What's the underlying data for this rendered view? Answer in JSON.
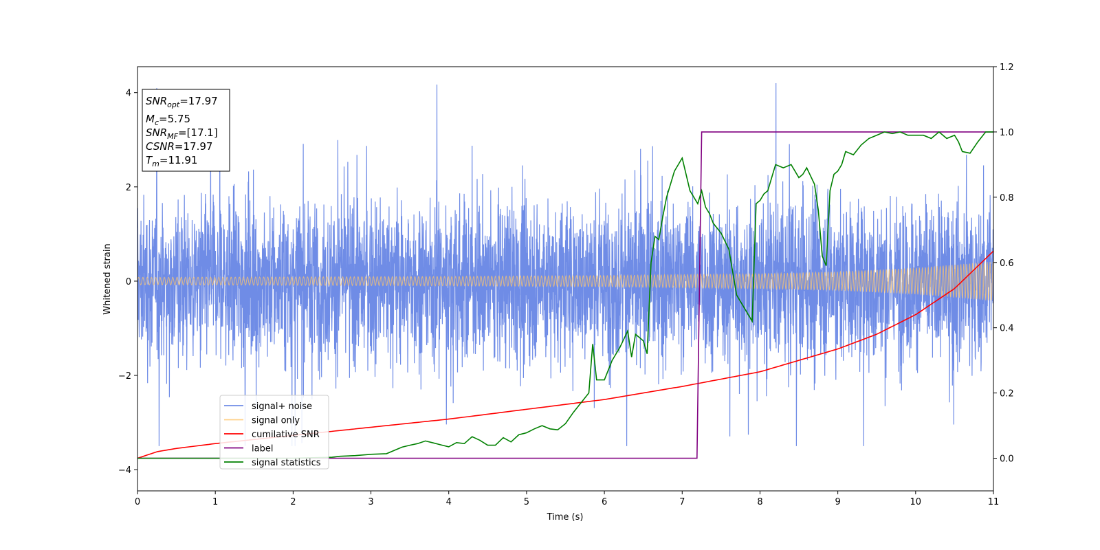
{
  "chart_data": {
    "type": "line",
    "xlabel": "Time (s)",
    "ylabel_left": "Whitened strain",
    "xlim": [
      0,
      11
    ],
    "ylim_left": [
      -4.45,
      4.55
    ],
    "ylim_right": [
      -0.1,
      1.2
    ],
    "xticks": [
      0,
      1,
      2,
      3,
      4,
      5,
      6,
      7,
      8,
      9,
      10,
      11
    ],
    "yticks_left": [
      -4,
      -2,
      0,
      2,
      4
    ],
    "yticks_right": [
      "0.0",
      "0.2",
      "0.4",
      "0.6",
      "0.8",
      "1.0",
      "1.2"
    ],
    "legend_position": "lower-left",
    "colors": {
      "noise": "#6f8ce6",
      "signal": "#ffc56b",
      "cumulative": "#ff0000",
      "label": "#800080",
      "statistics": "#008000"
    },
    "series": [
      {
        "name": "signal+ noise",
        "axis": "left",
        "amplitude_envelope_x": [
          0,
          11
        ],
        "amplitude_envelope_y": [
          1.6,
          1.6
        ],
        "peak_range": [
          -3.5,
          4.2
        ]
      },
      {
        "name": "signal only",
        "axis": "left",
        "amplitude_envelope_x": [
          0,
          2,
          4,
          6,
          8,
          9,
          10,
          11
        ],
        "amplitude_envelope_y": [
          0.08,
          0.09,
          0.1,
          0.12,
          0.16,
          0.2,
          0.28,
          0.42
        ]
      },
      {
        "name": "cumilative SNR",
        "axis": "right",
        "x": [
          0,
          0.25,
          0.5,
          1,
          2,
          3,
          4,
          5,
          6,
          7,
          8,
          9,
          9.5,
          10,
          10.5,
          11
        ],
        "y": [
          0.0,
          0.02,
          0.03,
          0.045,
          0.07,
          0.095,
          0.12,
          0.15,
          0.18,
          0.22,
          0.265,
          0.335,
          0.38,
          0.44,
          0.52,
          0.635
        ]
      },
      {
        "name": "label",
        "axis": "right",
        "x": [
          0,
          7.19,
          7.25,
          11
        ],
        "y": [
          0,
          0,
          1,
          1
        ]
      },
      {
        "name": "signal statistics",
        "axis": "right",
        "x": [
          0,
          0.5,
          1,
          1.5,
          2,
          2.5,
          2.6,
          2.8,
          3.0,
          3.2,
          3.3,
          3.4,
          3.5,
          3.6,
          3.7,
          3.8,
          3.9,
          4.0,
          4.1,
          4.2,
          4.3,
          4.4,
          4.5,
          4.6,
          4.7,
          4.8,
          4.9,
          5.0,
          5.1,
          5.2,
          5.3,
          5.4,
          5.5,
          5.6,
          5.7,
          5.8,
          5.85,
          5.9,
          6.0,
          6.1,
          6.2,
          6.3,
          6.35,
          6.4,
          6.45,
          6.5,
          6.55,
          6.6,
          6.65,
          6.7,
          6.75,
          6.8,
          6.9,
          7.0,
          7.1,
          7.2,
          7.25,
          7.3,
          7.35,
          7.4,
          7.5,
          7.6,
          7.7,
          7.8,
          7.9,
          7.95,
          8.0,
          8.05,
          8.1,
          8.2,
          8.3,
          8.4,
          8.5,
          8.55,
          8.6,
          8.7,
          8.75,
          8.8,
          8.85,
          8.9,
          8.95,
          9.0,
          9.05,
          9.1,
          9.2,
          9.3,
          9.4,
          9.5,
          9.6,
          9.7,
          9.8,
          9.9,
          10.0,
          10.1,
          10.2,
          10.3,
          10.4,
          10.5,
          10.55,
          10.6,
          10.7,
          10.8,
          10.9,
          11.0
        ],
        "y": [
          0.0,
          0.0,
          0.0,
          0.0,
          0.0,
          0.003,
          0.006,
          0.008,
          0.012,
          0.014,
          0.024,
          0.034,
          0.04,
          0.045,
          0.053,
          0.047,
          0.041,
          0.035,
          0.048,
          0.045,
          0.066,
          0.055,
          0.04,
          0.04,
          0.063,
          0.05,
          0.072,
          0.078,
          0.09,
          0.1,
          0.09,
          0.087,
          0.106,
          0.14,
          0.17,
          0.2,
          0.35,
          0.24,
          0.24,
          0.3,
          0.34,
          0.39,
          0.31,
          0.38,
          0.37,
          0.36,
          0.32,
          0.6,
          0.68,
          0.67,
          0.74,
          0.8,
          0.88,
          0.92,
          0.82,
          0.78,
          0.82,
          0.77,
          0.75,
          0.72,
          0.69,
          0.64,
          0.5,
          0.46,
          0.42,
          0.78,
          0.79,
          0.81,
          0.82,
          0.9,
          0.89,
          0.9,
          0.86,
          0.87,
          0.89,
          0.84,
          0.76,
          0.62,
          0.59,
          0.82,
          0.87,
          0.88,
          0.9,
          0.94,
          0.93,
          0.96,
          0.98,
          0.99,
          1.0,
          0.995,
          1.0,
          0.99,
          0.99,
          0.99,
          0.98,
          1.0,
          0.98,
          0.99,
          0.97,
          0.94,
          0.935,
          0.97,
          1.0,
          1.0
        ]
      }
    ],
    "info_box": {
      "snr_opt": {
        "base": "SNR",
        "sub": "opt",
        "value": "=17.97"
      },
      "mc": {
        "base": "M",
        "sub": "c",
        "value": "=5.75"
      },
      "snr_mf": {
        "base": "SNR",
        "sub": "MF",
        "value": "=[17.1]"
      },
      "csnr": {
        "base": "CSNR",
        "sub": "",
        "value": "=17.97"
      },
      "tm": {
        "base": "T",
        "sub": "m",
        "value": "=11.91"
      }
    }
  }
}
